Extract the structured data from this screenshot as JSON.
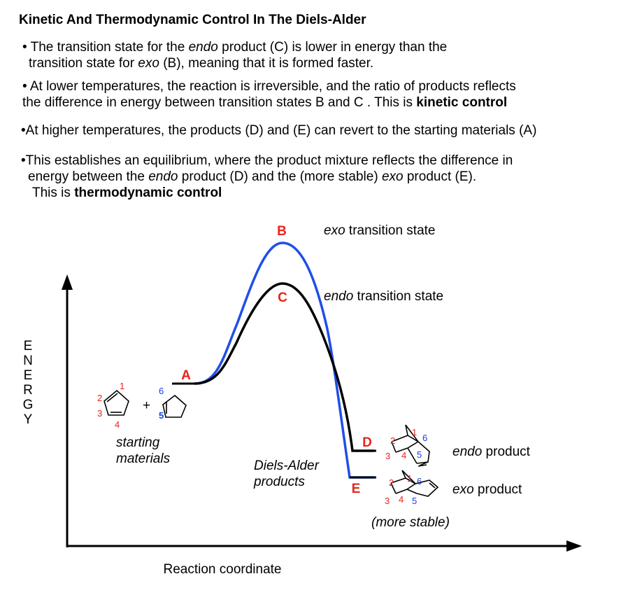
{
  "title": "Kinetic And Thermodynamic Control In The Diels-Alder",
  "bullets": [
    {
      "l1_pre": "• The transition state for the ",
      "l1_em": "endo",
      "l1_post": " product (C) is lower in energy than the",
      "l2_pre": "transition state for ",
      "l2_em": "exo",
      "l2_post": " (B), meaning that it is formed faster."
    },
    {
      "l1": "• At lower temperatures, the reaction is irreversible, and the ratio of products reflects",
      "l2_pre": "the difference in energy between transition states B and C . This is ",
      "l2_bold": "kinetic control"
    },
    {
      "l1": "•At higher temperatures, the products (D) and (E) can revert to the starting materials (A)"
    },
    {
      "l1": "•This establishes an equilibrium, where the product mixture reflects the difference in",
      "l2_pre": "energy between the ",
      "l2_em1": "endo",
      "l2_mid": " product (D) and the (more stable) ",
      "l2_em2": "exo",
      "l2_post": " product (E).",
      "l3_pre": "This is ",
      "l3_bold": "thermodynamic control"
    }
  ],
  "diagram": {
    "y_axis_label": [
      "E",
      "N",
      "E",
      "R",
      "G",
      "Y"
    ],
    "x_axis_label": "Reaction coordinate",
    "points": {
      "A": "A",
      "B": "B",
      "C": "C",
      "D": "D",
      "E": "E"
    },
    "labels": {
      "exo_ts_em": "exo",
      "exo_ts_rest": " transition state",
      "endo_ts_em": "endo",
      "endo_ts_rest": " transition state",
      "endo_product_em": "endo",
      "endo_product_rest": " product",
      "exo_product_em": "exo",
      "exo_product_rest": " product",
      "starting_1": "starting",
      "starting_2": "materials",
      "da_1": "Diels-Alder",
      "da_2": "products",
      "more_stable": "(more stable)",
      "plus": "+"
    },
    "atom_numbers": {
      "diene": [
        "1",
        "2",
        "3",
        "4"
      ],
      "dienophile": [
        "6",
        "5"
      ],
      "endo": [
        "1",
        "2",
        "3",
        "4",
        "5",
        "6"
      ],
      "exo": [
        "1",
        "2",
        "3",
        "4",
        "5",
        "6"
      ]
    },
    "colors": {
      "red": "#e8241c",
      "blue": "#1540e6",
      "curve_blue": "#1f4fe8",
      "black": "#000000"
    }
  }
}
